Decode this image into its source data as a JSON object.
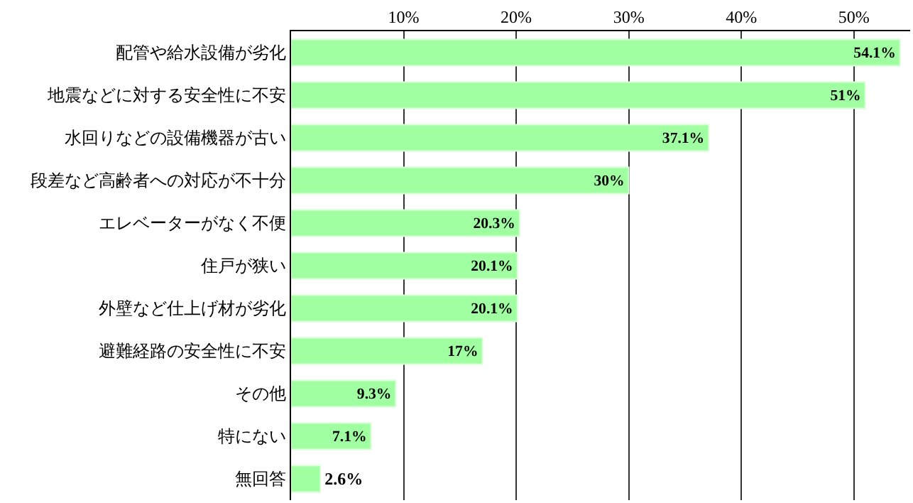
{
  "chart_data": {
    "type": "bar",
    "orientation": "horizontal",
    "categories": [
      "配管や給水設備が劣化",
      "地震などに対する安全性に不安",
      "水回りなどの設備機器が古い",
      "段差など高齢者への対応が不十分",
      "エレベーターがなく不便",
      "住戸が狭い",
      "外壁など仕上げ材が劣化",
      "避難経路の安全性に不安",
      "その他",
      "特にない",
      "無回答"
    ],
    "values": [
      54.1,
      51,
      37.1,
      30,
      20.3,
      20.1,
      20.1,
      17,
      9.3,
      7.1,
      2.6
    ],
    "value_labels": [
      "54.1%",
      "51%",
      "37.1%",
      "30%",
      "20.3%",
      "20.1%",
      "20.1%",
      "17%",
      "9.3%",
      "7.1%",
      "2.6%"
    ],
    "color": "#a0ffa0",
    "xlim": [
      0,
      55
    ],
    "xticks": [
      {
        "value": 10,
        "label": "10%"
      },
      {
        "value": 20,
        "label": "20%"
      },
      {
        "value": 30,
        "label": "30%"
      },
      {
        "value": 40,
        "label": "40%"
      },
      {
        "value": 50,
        "label": "50%"
      }
    ],
    "grid": "x"
  }
}
